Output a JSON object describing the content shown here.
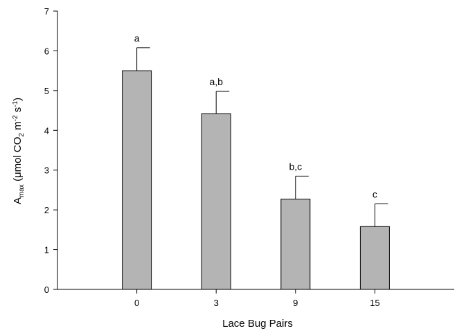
{
  "chart_data": {
    "type": "bar",
    "categories": [
      "0",
      "3",
      "9",
      "15"
    ],
    "values": [
      5.5,
      4.42,
      2.27,
      1.58
    ],
    "errors": [
      0.58,
      0.56,
      0.58,
      0.57
    ],
    "significance_labels": [
      "a",
      "a,b",
      "b,c",
      "c"
    ],
    "xlabel": "Lace Bug Pairs",
    "ylabel": {
      "prefix": "A",
      "prefix_sub": "max",
      "open": " (μmol CO",
      "co2_sub": "2",
      "m": " m",
      "m_sup": "-2",
      "s": " s",
      "s_sup": "-1",
      "close": ")"
    },
    "yticks": [
      "0",
      "1",
      "2",
      "3",
      "4",
      "5",
      "6",
      "7"
    ],
    "ylim": [
      0,
      7
    ],
    "grid": false,
    "bar_color": "#b4b4b4"
  }
}
